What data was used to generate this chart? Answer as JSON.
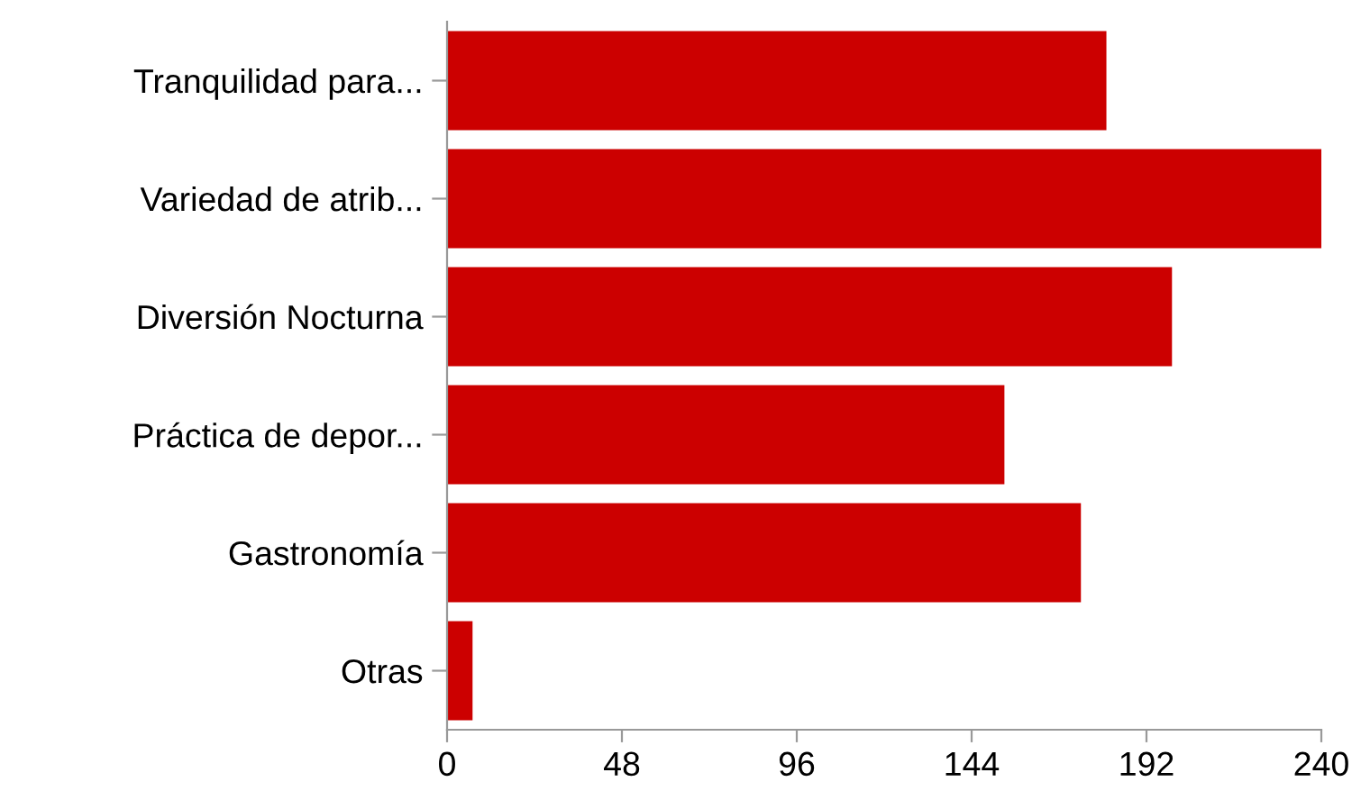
{
  "chart_data": {
    "type": "bar",
    "orientation": "horizontal",
    "categories": [
      "Tranquilidad para...",
      "Variedad de atrib...",
      "Diversión Nocturna",
      "Práctica de depor...",
      "Gastronomía",
      "Otras"
    ],
    "values": [
      181,
      240,
      199,
      153,
      174,
      7
    ],
    "color": "#cc0000",
    "xlim": [
      0,
      240
    ],
    "xticks": [
      0,
      48,
      96,
      144,
      192,
      240
    ],
    "grid": false,
    "legend": false
  }
}
